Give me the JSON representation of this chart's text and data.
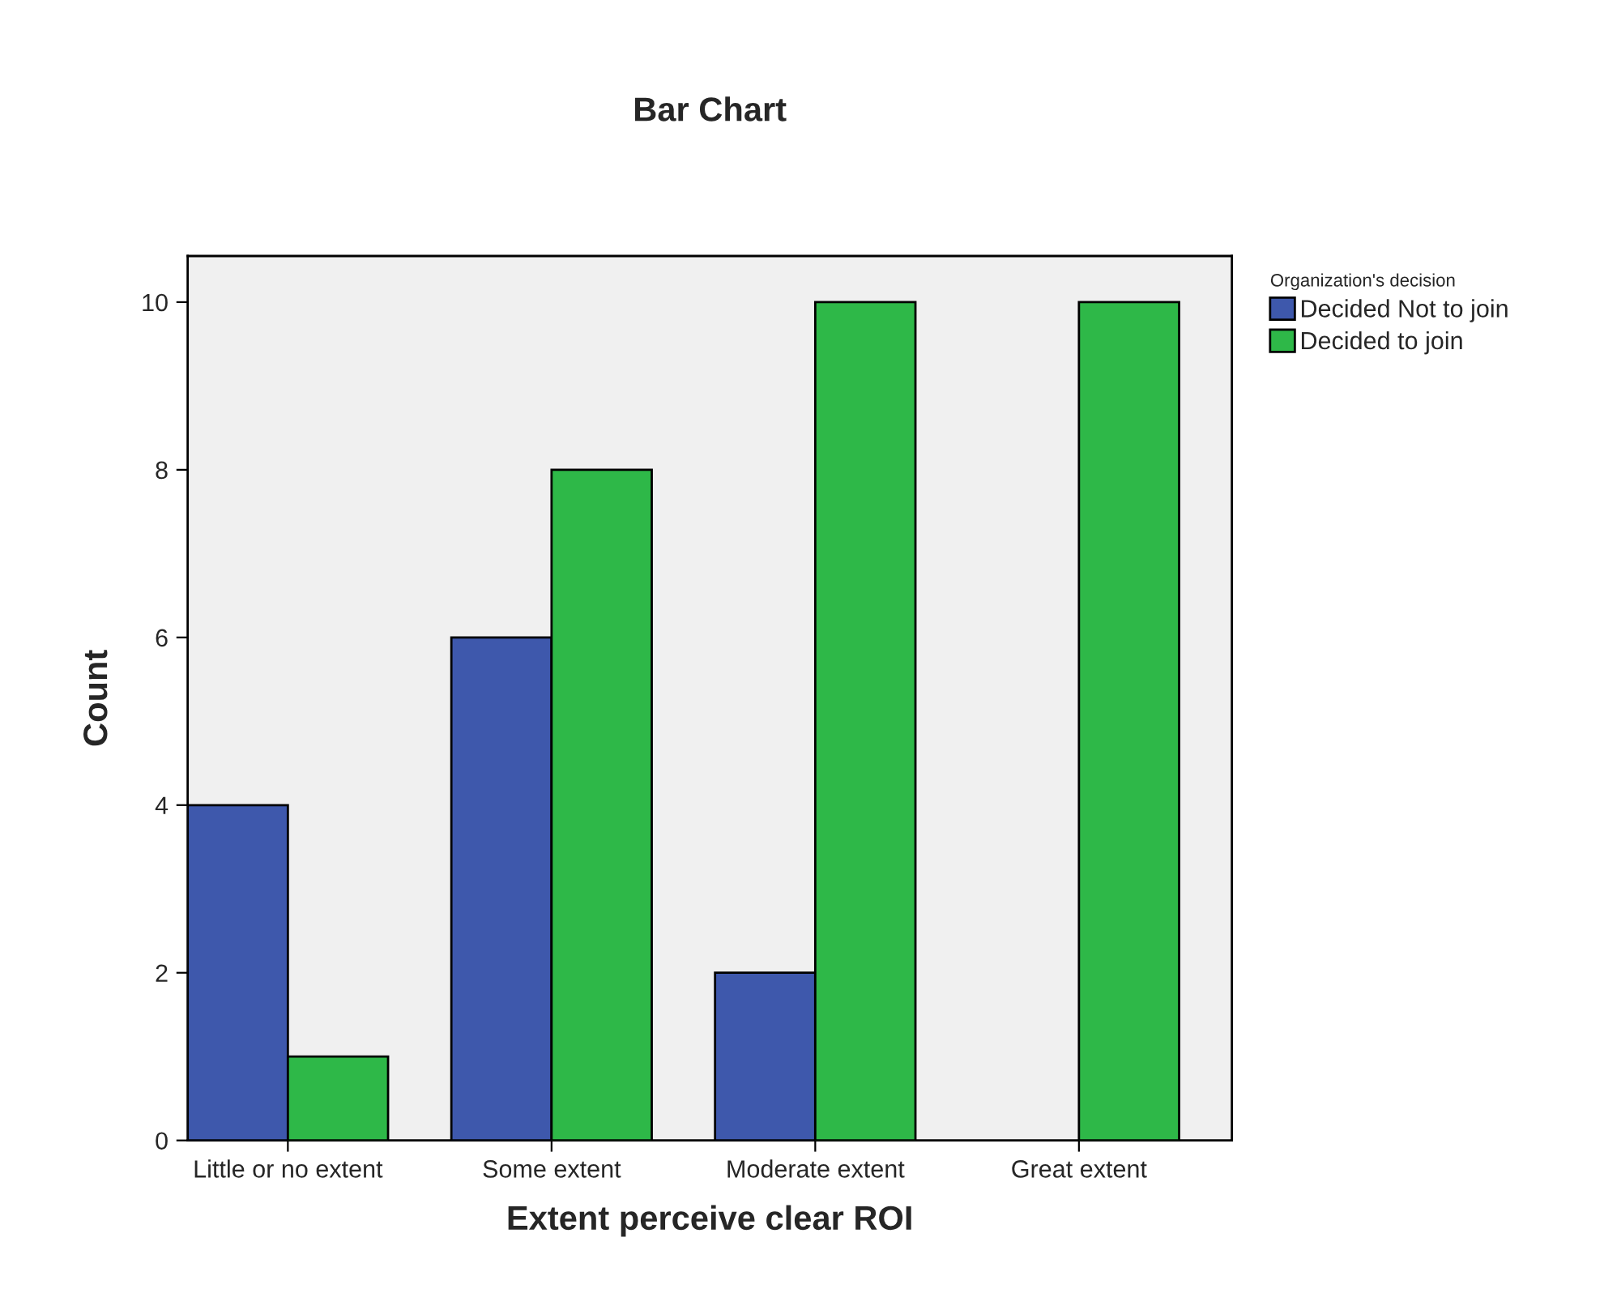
{
  "chart_data": {
    "type": "bar",
    "title": "Bar Chart",
    "xlabel": "Extent perceive clear ROI",
    "ylabel": "Count",
    "legend_title": "Organization's decision",
    "categories": [
      "Little or no extent",
      "Some extent",
      "Moderate extent",
      "Great extent"
    ],
    "series": [
      {
        "name": "Decided Not to join",
        "color": "#3e58ac",
        "values": [
          4,
          6,
          2,
          null
        ]
      },
      {
        "name": "Decided to join",
        "color": "#2eb848",
        "values": [
          1,
          8,
          10,
          10
        ]
      }
    ],
    "ylim": [
      0,
      10.55
    ],
    "yticks": [
      0,
      2,
      4,
      6,
      8,
      10
    ],
    "grid": false,
    "legend": "top right"
  }
}
